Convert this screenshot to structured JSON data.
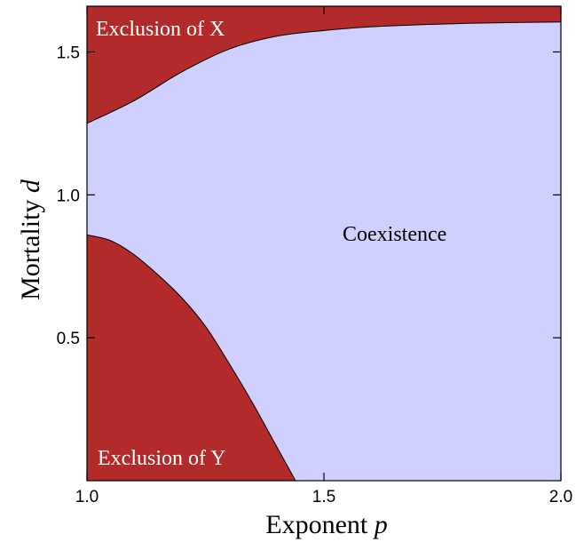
{
  "chart_data": {
    "type": "area",
    "xlabel": "Exponent",
    "xlabel_var": "p",
    "ylabel": "Mortality",
    "ylabel_var": "d",
    "xlim": [
      1.0,
      2.0
    ],
    "ylim": [
      0.0,
      1.66
    ],
    "x_ticks": [
      1.0,
      1.5,
      2.0
    ],
    "x_tick_labels": [
      "1.0",
      "1.5",
      "2.0"
    ],
    "y_ticks": [
      0.5,
      1.0,
      1.5
    ],
    "y_tick_labels": [
      "0.5",
      "1.0",
      "1.5"
    ],
    "grid": false,
    "regions": [
      {
        "name": "Exclusion of X",
        "color": "#b22a2a",
        "label_color": "#ffffff",
        "boundary": [
          {
            "x": 1.0,
            "y": 1.25
          },
          {
            "x": 1.1,
            "y": 1.33
          },
          {
            "x": 1.2,
            "y": 1.43
          },
          {
            "x": 1.3,
            "y": 1.51
          },
          {
            "x": 1.4,
            "y": 1.555
          },
          {
            "x": 1.5,
            "y": 1.575
          },
          {
            "x": 1.6,
            "y": 1.588
          },
          {
            "x": 1.7,
            "y": 1.595
          },
          {
            "x": 1.8,
            "y": 1.6
          },
          {
            "x": 1.9,
            "y": 1.603
          },
          {
            "x": 2.0,
            "y": 1.605
          }
        ]
      },
      {
        "name": "Coexistence",
        "color": "#d0d0ff",
        "label_color": "#000000"
      },
      {
        "name": "Exclusion of Y",
        "color": "#b22a2a",
        "label_color": "#ffffff",
        "boundary": [
          {
            "x": 1.0,
            "y": 0.86
          },
          {
            "x": 1.05,
            "y": 0.84
          },
          {
            "x": 1.1,
            "y": 0.79
          },
          {
            "x": 1.15,
            "y": 0.72
          },
          {
            "x": 1.2,
            "y": 0.64
          },
          {
            "x": 1.25,
            "y": 0.54
          },
          {
            "x": 1.3,
            "y": 0.41
          },
          {
            "x": 1.35,
            "y": 0.27
          },
          {
            "x": 1.4,
            "y": 0.12
          },
          {
            "x": 1.44,
            "y": 0.0
          }
        ]
      }
    ]
  }
}
